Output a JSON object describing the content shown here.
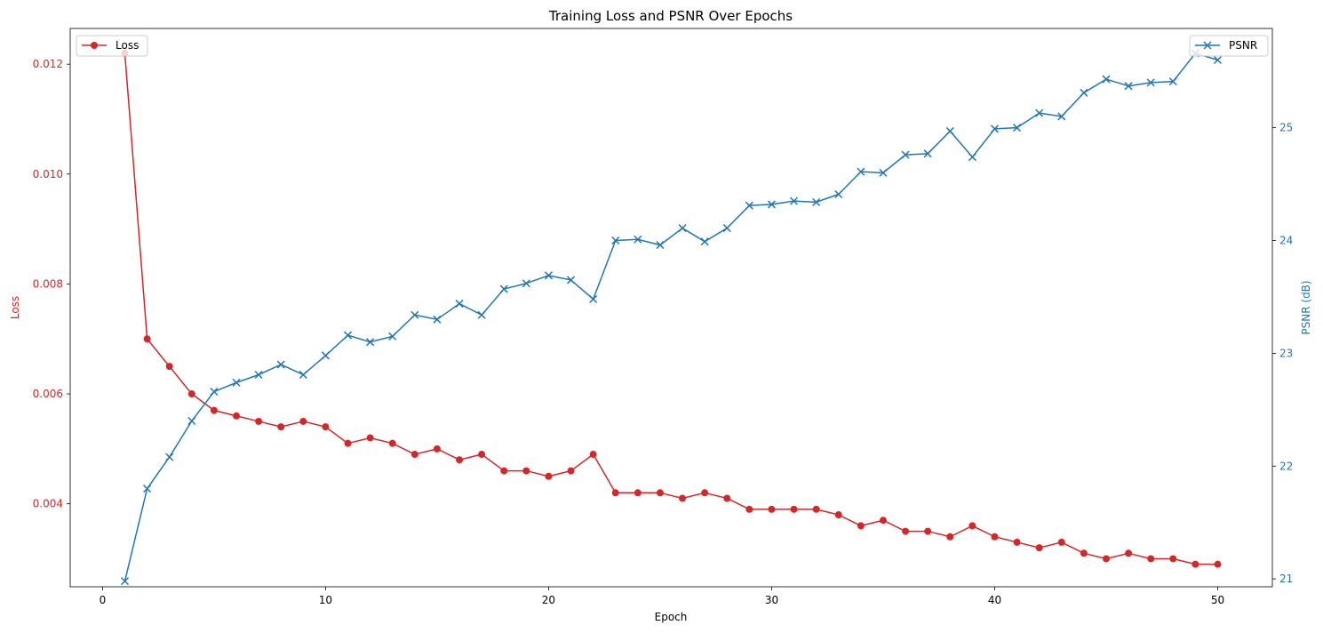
{
  "chart_data": {
    "type": "line",
    "title": "Training Loss and PSNR Over Epochs",
    "xlabel": "Epoch",
    "x": [
      1,
      2,
      3,
      4,
      5,
      6,
      7,
      8,
      9,
      10,
      11,
      12,
      13,
      14,
      15,
      16,
      17,
      18,
      19,
      20,
      21,
      22,
      23,
      24,
      25,
      26,
      27,
      28,
      29,
      30,
      31,
      32,
      33,
      34,
      35,
      36,
      37,
      38,
      39,
      40,
      41,
      42,
      43,
      44,
      45,
      46,
      47,
      48,
      49,
      50
    ],
    "xlim": [
      -1.45,
      52.45
    ],
    "xticks": [
      0,
      10,
      20,
      30,
      40,
      50
    ],
    "grid": false,
    "series": [
      {
        "name": "Loss",
        "axis": "left",
        "ylabel": "Loss",
        "color": "#d62728",
        "marker": "circle",
        "ylim": [
          0.00249,
          0.01265
        ],
        "yticks": [
          0.004,
          0.006,
          0.008,
          0.01,
          0.012
        ],
        "ytick_labels": [
          "0.004",
          "0.006",
          "0.008",
          "0.010",
          "0.012"
        ],
        "legend": "top-left",
        "values": [
          0.0122,
          0.007,
          0.0065,
          0.006,
          0.0057,
          0.0056,
          0.0055,
          0.0054,
          0.0055,
          0.0054,
          0.0051,
          0.0052,
          0.0051,
          0.0049,
          0.005,
          0.0048,
          0.0049,
          0.0046,
          0.0046,
          0.0045,
          0.0046,
          0.0049,
          0.0042,
          0.0042,
          0.0042,
          0.0041,
          0.0042,
          0.0041,
          0.0039,
          0.0039,
          0.0039,
          0.0039,
          0.0038,
          0.0036,
          0.0037,
          0.0035,
          0.0035,
          0.0034,
          0.0036,
          0.0034,
          0.0033,
          0.0032,
          0.0033,
          0.0031,
          0.003,
          0.0031,
          0.003,
          0.003,
          0.0029,
          0.0029
        ]
      },
      {
        "name": "PSNR",
        "axis": "right",
        "ylabel": "PSNR (dB)",
        "color": "#1f77b4",
        "marker": "x",
        "ylim": [
          20.93,
          25.88
        ],
        "yticks": [
          21,
          22,
          23,
          24,
          25
        ],
        "ytick_labels": [
          "21",
          "22",
          "23",
          "24",
          "25"
        ],
        "legend": "top-right",
        "values": [
          20.98,
          21.8,
          22.08,
          22.4,
          22.66,
          22.74,
          22.81,
          22.9,
          22.81,
          22.98,
          23.16,
          23.1,
          23.15,
          23.34,
          23.3,
          23.44,
          23.34,
          23.57,
          23.62,
          23.69,
          23.65,
          23.48,
          24.0,
          24.01,
          23.96,
          24.11,
          23.99,
          24.11,
          24.31,
          24.32,
          24.35,
          24.34,
          24.41,
          24.61,
          24.6,
          24.76,
          24.77,
          24.97,
          24.74,
          24.99,
          25.0,
          25.13,
          25.1,
          25.31,
          25.43,
          25.37,
          25.4,
          25.41,
          25.66,
          25.6
        ]
      }
    ]
  }
}
